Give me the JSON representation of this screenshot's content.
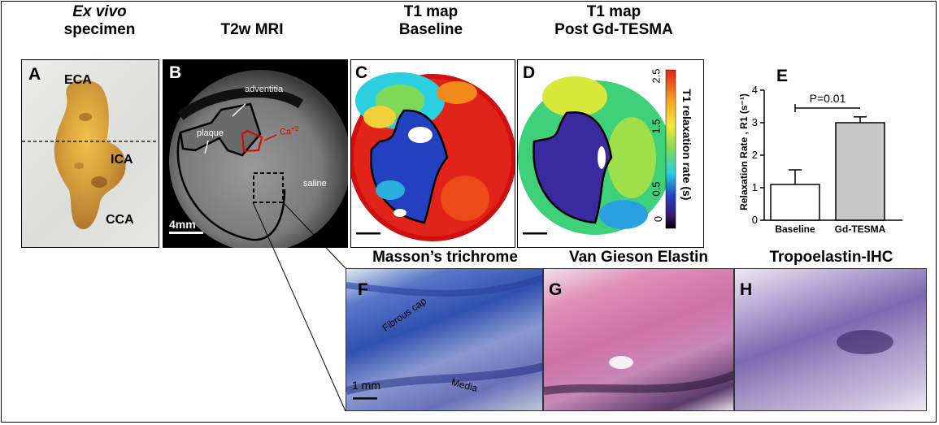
{
  "titles": {
    "a_line1": "Ex vivo",
    "a_line2": "specimen",
    "b": "T2w MRI",
    "c_line1": "T1 map",
    "c_line2": "Baseline",
    "d_line1": "T1 map",
    "d_line2": "Post Gd-TESMA",
    "f": "Masson’s trichrome",
    "g": "Van Gieson Elastin",
    "h": "Tropoelastin-IHC"
  },
  "panel_letters": {
    "a": "A",
    "b": "B",
    "c": "C",
    "d": "D",
    "e": "E",
    "f": "F",
    "g": "G",
    "h": "H"
  },
  "panel_a": {
    "eca": "ECA",
    "ica": "ICA",
    "cca": "CCA"
  },
  "panel_b": {
    "adventitia": "adventitia",
    "plaque": "plaque",
    "ca": "Ca",
    "ca_sup": "+2",
    "saline": "saline",
    "scale": "4mm"
  },
  "colorbar": {
    "label": "T1 relaxation rate (s)",
    "ticks": [
      "2.5",
      "1.5",
      "0.5",
      "0"
    ]
  },
  "panel_f": {
    "fibrous_cap": "Fibrous cap",
    "media": "Media",
    "scale": "1 mm"
  },
  "colors": {
    "bar_gdtesma": "#c8c8c8",
    "bar_baseline": "#ffffff"
  },
  "chart_data": {
    "type": "bar",
    "categories": [
      "Baseline",
      "Gd-TESMA"
    ],
    "values": [
      1.1,
      3.0
    ],
    "errors": [
      0.45,
      0.18
    ],
    "ylabel": "Relaxation Rate , R1 (s⁻¹)",
    "ylim": [
      0,
      4
    ],
    "yticks": [
      "0",
      "1",
      "2",
      "3",
      "4"
    ],
    "annotation": "P=0.01"
  }
}
